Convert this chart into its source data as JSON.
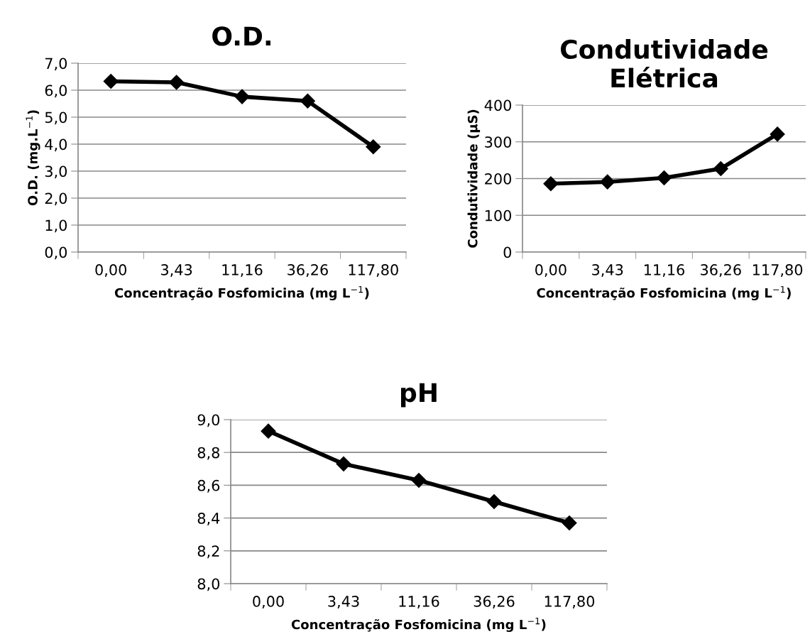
{
  "chart_data": [
    {
      "type": "line",
      "title": "O.D.",
      "xlabel": "Concentração Fosfomicina (mg L$^{−1}$)",
      "ylabel": "O.D. (mg.L$^{−1}$)",
      "categories": [
        "0,00",
        "3,43",
        "11,16",
        "36,26",
        "117,80"
      ],
      "series": [
        {
          "color": "#000000",
          "values": [
            6.33,
            6.29,
            5.76,
            5.6,
            3.9
          ]
        }
      ],
      "ylim": [
        0,
        7
      ],
      "yticks": [
        {
          "value": 0,
          "label": "0,0"
        },
        {
          "value": 1,
          "label": "1,0"
        },
        {
          "value": 2,
          "label": "2,0"
        },
        {
          "value": 3,
          "label": "3,0"
        },
        {
          "value": 4,
          "label": "4,0"
        },
        {
          "value": 5,
          "label": "5,0"
        },
        {
          "value": 6,
          "label": "6,0"
        },
        {
          "value": 7,
          "label": "7,0"
        }
      ],
      "grid": "y",
      "marker": "diamond",
      "line_style": "solid"
    },
    {
      "type": "line",
      "title": "Condutividade\nElétrica",
      "xlabel": "Concentração Fosfomicina (mg L$^{−1}$)",
      "ylabel": "Condutividade (µS)",
      "categories": [
        "0,00",
        "3,43",
        "11,16",
        "36,26",
        "117,80"
      ],
      "series": [
        {
          "color": "#000000",
          "values": [
            186,
            191,
            202,
            227,
            321
          ]
        }
      ],
      "ylim": [
        0,
        400
      ],
      "yticks": [
        0,
        100,
        200,
        300,
        400
      ],
      "grid": "y",
      "marker": "diamond",
      "line_style": "solid"
    },
    {
      "type": "line",
      "title": "pH",
      "xlabel": "Concentração Fosfomicina (mg L$^{−1}$)",
      "categories": [
        "0,00",
        "3,43",
        "11,16",
        "36,26",
        "117,80"
      ],
      "series": [
        {
          "color": "#000000",
          "values": [
            8.93,
            8.73,
            8.63,
            8.5,
            8.37
          ]
        }
      ],
      "ylim": [
        8,
        9
      ],
      "yticks": [
        {
          "value": 8,
          "label": "8,0"
        },
        {
          "value": 8.2,
          "label": "8,2"
        },
        {
          "value": 8.4,
          "label": "8,4"
        },
        {
          "value": 8.6,
          "label": "8,6"
        },
        {
          "value": 8.8,
          "label": "8,8"
        },
        {
          "value": 9,
          "label": "9,0"
        }
      ],
      "grid": "y",
      "marker": "diamond",
      "line_style": "solid"
    }
  ]
}
